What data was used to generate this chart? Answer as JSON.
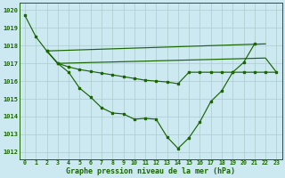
{
  "title": "Graphe pression niveau de la mer (hPa)",
  "background_color": "#cce8f0",
  "grid_color": "#aacccc",
  "line_color": "#1a6600",
  "curve_main": {
    "x": [
      0,
      1,
      2,
      3,
      4,
      5,
      6,
      7,
      8,
      9,
      10,
      11,
      12,
      13,
      14,
      15,
      16,
      17,
      18,
      19,
      20,
      21
    ],
    "y": [
      1019.7,
      1018.5,
      1017.7,
      1017.0,
      1016.5,
      1015.6,
      1015.1,
      1014.5,
      1014.2,
      1014.15,
      1013.85,
      1013.9,
      1013.85,
      1012.85,
      1012.2,
      1012.8,
      1013.7,
      1014.85,
      1015.45,
      1016.5,
      1017.05,
      1018.1
    ]
  },
  "curve_line1": {
    "x": [
      2,
      22
    ],
    "y": [
      1017.7,
      1018.1
    ]
  },
  "curve_line2": {
    "x": [
      2,
      3,
      22,
      23
    ],
    "y": [
      1017.7,
      1017.0,
      1017.3,
      1016.5
    ]
  },
  "curve_line3": {
    "x": [
      2,
      3,
      4,
      5,
      6,
      7,
      8,
      9,
      10,
      11,
      12,
      13,
      14,
      15,
      16,
      17,
      18,
      19,
      20,
      21,
      22,
      23
    ],
    "y": [
      1017.7,
      1017.0,
      1016.8,
      1016.65,
      1016.55,
      1016.45,
      1016.35,
      1016.25,
      1016.15,
      1016.05,
      1016.0,
      1015.95,
      1015.85,
      1016.5,
      1016.5,
      1016.5,
      1016.5,
      1016.5,
      1016.5,
      1016.5,
      1016.5,
      1016.5
    ]
  },
  "yticks": [
    1012,
    1013,
    1014,
    1015,
    1016,
    1017,
    1018,
    1019,
    1020
  ],
  "xticks": [
    0,
    1,
    2,
    3,
    4,
    5,
    6,
    7,
    8,
    9,
    10,
    11,
    12,
    13,
    14,
    15,
    16,
    17,
    18,
    19,
    20,
    21,
    22,
    23
  ],
  "xlim": [
    -0.5,
    23.5
  ],
  "ylim": [
    1011.6,
    1020.4
  ]
}
